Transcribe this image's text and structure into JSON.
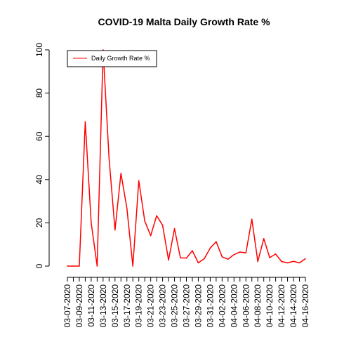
{
  "chart_data": {
    "type": "line",
    "title": "COVID-19 Malta Daily Growth Rate %",
    "xlabel": "",
    "ylabel": "",
    "ylim": [
      0,
      100
    ],
    "yticks": [
      0,
      20,
      40,
      60,
      80,
      100
    ],
    "x": [
      "03-07-2020",
      "03-08-2020",
      "03-09-2020",
      "03-10-2020",
      "03-11-2020",
      "03-12-2020",
      "03-13-2020",
      "03-14-2020",
      "03-15-2020",
      "03-16-2020",
      "03-17-2020",
      "03-18-2020",
      "03-19-2020",
      "03-20-2020",
      "03-21-2020",
      "03-22-2020",
      "03-23-2020",
      "03-24-2020",
      "03-25-2020",
      "03-26-2020",
      "03-27-2020",
      "03-28-2020",
      "03-29-2020",
      "03-30-2020",
      "03-31-2020",
      "04-01-2020",
      "04-02-2020",
      "04-03-2020",
      "04-04-2020",
      "04-05-2020",
      "04-06-2020",
      "04-07-2020",
      "04-08-2020",
      "04-09-2020",
      "04-10-2020",
      "04-11-2020",
      "04-12-2020",
      "04-13-2020",
      "04-14-2020",
      "04-15-2020",
      "04-16-2020"
    ],
    "x_tick_labels": [
      "03-07-2020",
      "03-09-2020",
      "03-11-2020",
      "03-13-2020",
      "03-15-2020",
      "03-17-2020",
      "03-19-2020",
      "03-21-2020",
      "03-23-2020",
      "03-25-2020",
      "03-27-2020",
      "03-29-2020",
      "03-31-2020",
      "04-02-2020",
      "04-04-2020",
      "04-06-2020",
      "04-08-2020",
      "04-10-2020",
      "04-12-2020",
      "04-14-2020",
      "04-16-2020"
    ],
    "series": [
      {
        "name": "Daily Growth Rate %",
        "color": "#ff0000",
        "values": [
          0,
          0,
          0,
          66.7,
          20,
          0,
          100,
          50,
          16.7,
          42.9,
          26.7,
          0,
          39.5,
          20.8,
          14.1,
          23.3,
          18.9,
          2.8,
          17.3,
          3.8,
          3.7,
          7.1,
          1.5,
          3.4,
          8.3,
          11.3,
          4.3,
          3.2,
          5.3,
          6.5,
          6.1,
          21.7,
          2.1,
          12.7,
          3.9,
          5.6,
          2.1,
          1.5,
          2.2,
          1.5,
          3.4
        ]
      }
    ],
    "legend": {
      "position": "top-left"
    },
    "grid": false
  }
}
